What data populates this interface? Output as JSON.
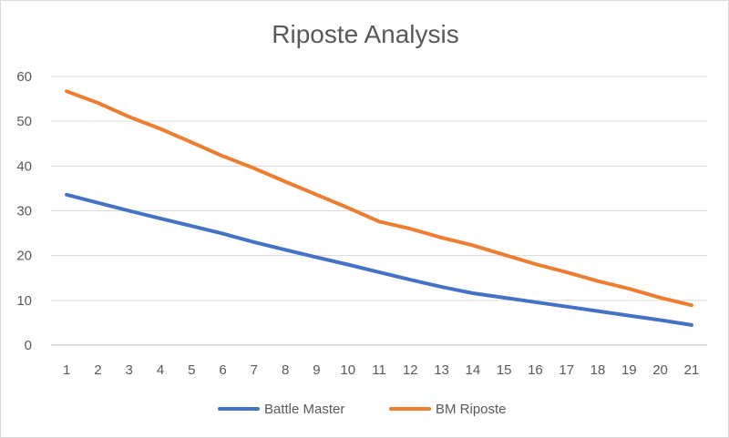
{
  "chart_data": {
    "type": "line",
    "title": "Riposte Analysis",
    "xlabel": "",
    "ylabel": "",
    "x": [
      1,
      2,
      3,
      4,
      5,
      6,
      7,
      8,
      9,
      10,
      11,
      12,
      13,
      14,
      15,
      16,
      17,
      18,
      19,
      20,
      21
    ],
    "ylim": [
      0,
      60
    ],
    "yticks": [
      0,
      10,
      20,
      30,
      40,
      50,
      60
    ],
    "grid": true,
    "legend_position": "bottom",
    "series": [
      {
        "name": "Battle Master",
        "color": "#4472c4",
        "values": [
          33.6,
          31.8,
          30.0,
          28.3,
          26.6,
          24.9,
          23.0,
          21.3,
          19.6,
          18.0,
          16.3,
          14.6,
          13.0,
          11.6,
          10.6,
          9.6,
          8.6,
          7.6,
          6.6,
          5.6,
          4.5
        ]
      },
      {
        "name": "BM Riposte",
        "color": "#ed7d31",
        "values": [
          56.7,
          54.1,
          51.0,
          48.3,
          45.3,
          42.2,
          39.5,
          36.5,
          33.6,
          30.7,
          27.6,
          26.0,
          24.0,
          22.3,
          20.2,
          18.1,
          16.3,
          14.3,
          12.6,
          10.6,
          8.9
        ]
      }
    ]
  }
}
